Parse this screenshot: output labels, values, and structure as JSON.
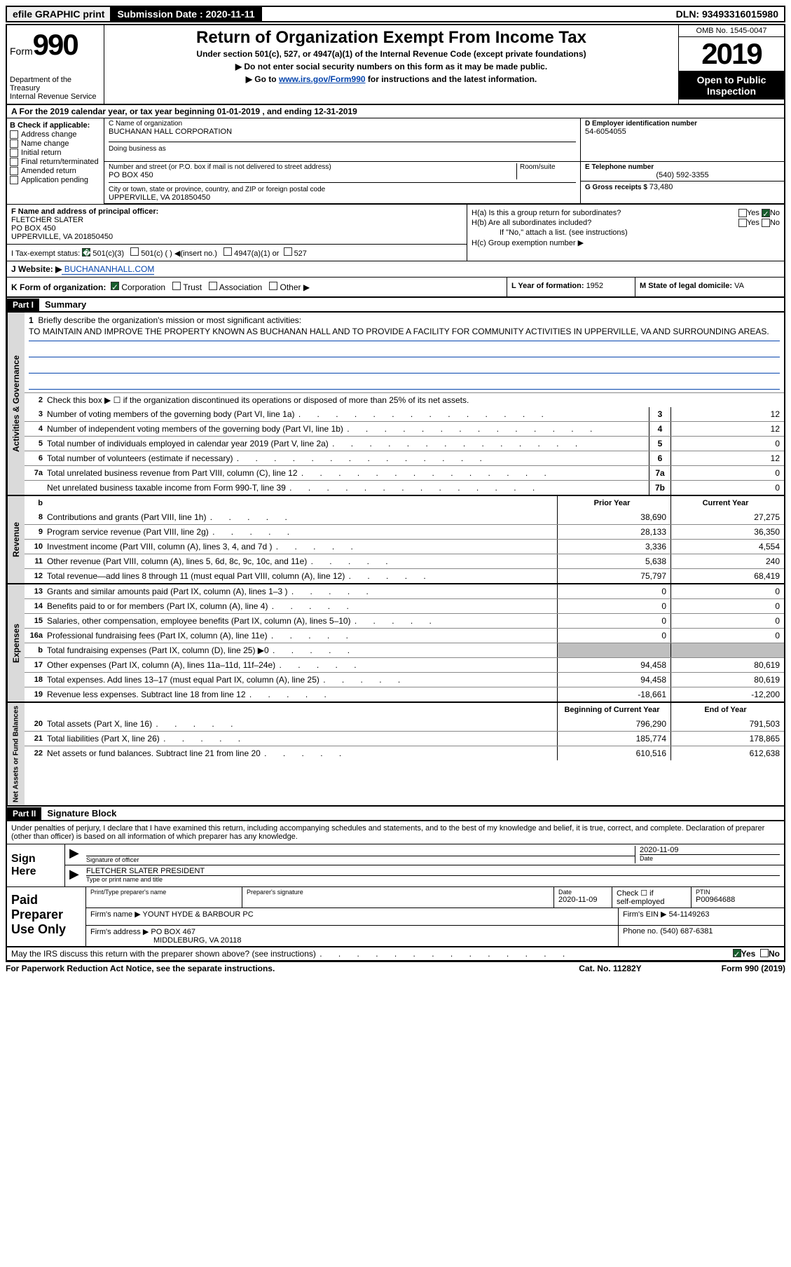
{
  "header": {
    "efile": "efile GRAPHIC print",
    "sub_date_lbl": "Submission Date : 2020-11-11",
    "dln": "DLN: 93493316015980"
  },
  "form": {
    "form_label": "Form",
    "form_num": "990",
    "dept": "Department of the Treasury",
    "irs": "Internal Revenue Service",
    "title": "Return of Organization Exempt From Income Tax",
    "sub1": "Under section 501(c), 527, or 4947(a)(1) of the Internal Revenue Code (except private foundations)",
    "sub2": "▶ Do not enter social security numbers on this form as it may be made public.",
    "sub3_pre": "▶ Go to ",
    "sub3_link": "www.irs.gov/Form990",
    "sub3_post": " for instructions and the latest information.",
    "omb": "OMB No. 1545-0047",
    "year": "2019",
    "open": "Open to Public Inspection"
  },
  "rowA": "A For the 2019 calendar year, or tax year beginning 01-01-2019    , and ending 12-31-2019",
  "B": {
    "hdr": "B Check if applicable:",
    "opts": [
      "Address change",
      "Name change",
      "Initial return",
      "Final return/terminated",
      "Amended return",
      "Application pending"
    ]
  },
  "C": {
    "lbl": "C Name of organization",
    "val": "BUCHANAN HALL CORPORATION",
    "dba": "Doing business as"
  },
  "addr": {
    "lbl": "Number and street (or P.O. box if mail is not delivered to street address)",
    "suite": "Room/suite",
    "val": "PO BOX 450",
    "city_lbl": "City or town, state or province, country, and ZIP or foreign postal code",
    "city_val": "UPPERVILLE, VA  201850450"
  },
  "D": {
    "lbl": "D Employer identification number",
    "val": "54-6054055"
  },
  "E": {
    "lbl": "E Telephone number",
    "val": "(540) 592-3355"
  },
  "G": {
    "lbl": "G Gross receipts $ ",
    "val": "73,480"
  },
  "F": {
    "lbl": "F  Name and address of principal officer:",
    "name": "FLETCHER SLATER",
    "addr1": "PO BOX 450",
    "addr2": "UPPERVILLE, VA  201850450"
  },
  "H": {
    "a": "H(a)  Is this a group return for subordinates?",
    "b": "H(b)  Are all subordinates included?",
    "b_note": "If \"No,\" attach a list. (see instructions)",
    "c": "H(c)  Group exemption number ▶"
  },
  "I": {
    "lbl": "I   Tax-exempt status:",
    "a": "501(c)(3)",
    "b": "501(c) (  ) ◀(insert no.)",
    "c": "4947(a)(1) or",
    "d": "527"
  },
  "J": {
    "lbl": "J   Website: ▶",
    "val": " BUCHANANHALL.COM"
  },
  "K": {
    "lbl": "K Form of organization:",
    "opts": [
      "Corporation",
      "Trust",
      "Association",
      "Other ▶"
    ]
  },
  "L": {
    "lbl": "L Year of formation: ",
    "val": "1952"
  },
  "M": {
    "lbl": "M State of legal domicile: ",
    "val": "VA"
  },
  "partI": {
    "hdr": "Part I",
    "title": "Summary"
  },
  "summary": {
    "line1": "Briefly describe the organization's mission or most significant activities:",
    "mission": "TO MAINTAIN AND IMPROVE THE PROPERTY KNOWN AS BUCHANAN HALL AND TO PROVIDE A FACILITY FOR COMMUNITY ACTIVITIES IN UPPERVILLE, VA AND SURROUNDING AREAS.",
    "line2": "Check this box ▶ ☐  if the organization discontinued its operations or disposed of more than 25% of its net assets.",
    "prior": "Prior Year",
    "current": "Current Year",
    "begin": "Beginning of Current Year",
    "end": "End of Year"
  },
  "gov_rows": [
    {
      "n": "3",
      "d": "Number of voting members of the governing body (Part VI, line 1a)",
      "box": "3",
      "v": "12"
    },
    {
      "n": "4",
      "d": "Number of independent voting members of the governing body (Part VI, line 1b)",
      "box": "4",
      "v": "12"
    },
    {
      "n": "5",
      "d": "Total number of individuals employed in calendar year 2019 (Part V, line 2a)",
      "box": "5",
      "v": "0"
    },
    {
      "n": "6",
      "d": "Total number of volunteers (estimate if necessary)",
      "box": "6",
      "v": "12"
    },
    {
      "n": "7a",
      "d": "Total unrelated business revenue from Part VIII, column (C), line 12",
      "box": "7a",
      "v": "0"
    },
    {
      "n": "",
      "d": "Net unrelated business taxable income from Form 990-T, line 39",
      "box": "7b",
      "v": "0"
    }
  ],
  "rev_rows": [
    {
      "n": "8",
      "d": "Contributions and grants (Part VIII, line 1h)",
      "p": "38,690",
      "c": "27,275"
    },
    {
      "n": "9",
      "d": "Program service revenue (Part VIII, line 2g)",
      "p": "28,133",
      "c": "36,350"
    },
    {
      "n": "10",
      "d": "Investment income (Part VIII, column (A), lines 3, 4, and 7d )",
      "p": "3,336",
      "c": "4,554"
    },
    {
      "n": "11",
      "d": "Other revenue (Part VIII, column (A), lines 5, 6d, 8c, 9c, 10c, and 11e)",
      "p": "5,638",
      "c": "240"
    },
    {
      "n": "12",
      "d": "Total revenue—add lines 8 through 11 (must equal Part VIII, column (A), line 12)",
      "p": "75,797",
      "c": "68,419"
    }
  ],
  "exp_rows": [
    {
      "n": "13",
      "d": "Grants and similar amounts paid (Part IX, column (A), lines 1–3 )",
      "p": "0",
      "c": "0"
    },
    {
      "n": "14",
      "d": "Benefits paid to or for members (Part IX, column (A), line 4)",
      "p": "0",
      "c": "0"
    },
    {
      "n": "15",
      "d": "Salaries, other compensation, employee benefits (Part IX, column (A), lines 5–10)",
      "p": "0",
      "c": "0"
    },
    {
      "n": "16a",
      "d": "Professional fundraising fees (Part IX, column (A), line 11e)",
      "p": "0",
      "c": "0"
    },
    {
      "n": "b",
      "d": "Total fundraising expenses (Part IX, column (D), line 25) ▶0",
      "p": "",
      "c": "",
      "gray": true
    },
    {
      "n": "17",
      "d": "Other expenses (Part IX, column (A), lines 11a–11d, 11f–24e)",
      "p": "94,458",
      "c": "80,619"
    },
    {
      "n": "18",
      "d": "Total expenses. Add lines 13–17 (must equal Part IX, column (A), line 25)",
      "p": "94,458",
      "c": "80,619"
    },
    {
      "n": "19",
      "d": "Revenue less expenses. Subtract line 18 from line 12",
      "p": "-18,661",
      "c": "-12,200"
    }
  ],
  "net_rows": [
    {
      "n": "20",
      "d": "Total assets (Part X, line 16)",
      "p": "796,290",
      "c": "791,503"
    },
    {
      "n": "21",
      "d": "Total liabilities (Part X, line 26)",
      "p": "185,774",
      "c": "178,865"
    },
    {
      "n": "22",
      "d": "Net assets or fund balances. Subtract line 21 from line 20",
      "p": "610,516",
      "c": "612,638"
    }
  ],
  "vtabs": {
    "gov": "Activities & Governance",
    "rev": "Revenue",
    "exp": "Expenses",
    "net": "Net Assets or Fund Balances"
  },
  "partII": {
    "hdr": "Part II",
    "title": "Signature Block"
  },
  "sig": {
    "decl": "Under penalties of perjury, I declare that I have examined this return, including accompanying schedules and statements, and to the best of my knowledge and belief, it is true, correct, and complete. Declaration of preparer (other than officer) is based on all information of which preparer has any knowledge.",
    "here": "Sign Here",
    "sig_lbl": "Signature of officer",
    "date": "2020-11-09",
    "date_lbl": "Date",
    "name": "FLETCHER SLATER  PRESIDENT",
    "name_lbl": "Type or print name and title"
  },
  "paid": {
    "left": "Paid Preparer Use Only",
    "h1": "Print/Type preparer's name",
    "h2": "Preparer's signature",
    "h3": "Date",
    "h3v": "2020-11-09",
    "h4a": "Check ☐ if",
    "h4b": "self-employed",
    "h5": "PTIN",
    "h5v": "P00964688",
    "firm_lbl": "Firm's name     ▶ ",
    "firm": "YOUNT HYDE & BARBOUR PC",
    "ein_lbl": "Firm's EIN ▶ ",
    "ein": "54-1149263",
    "addr_lbl": "Firm's address ▶",
    "addr1": "PO BOX 467",
    "addr2": "MIDDLEBURG, VA  20118",
    "phone_lbl": "Phone no. ",
    "phone": "(540) 687-6381"
  },
  "discuss": "May the IRS discuss this return with the preparer shown above? (see instructions)",
  "footer": {
    "left": "For Paperwork Reduction Act Notice, see the separate instructions.",
    "mid": "Cat. No. 11282Y",
    "right": "Form 990 (2019)"
  }
}
